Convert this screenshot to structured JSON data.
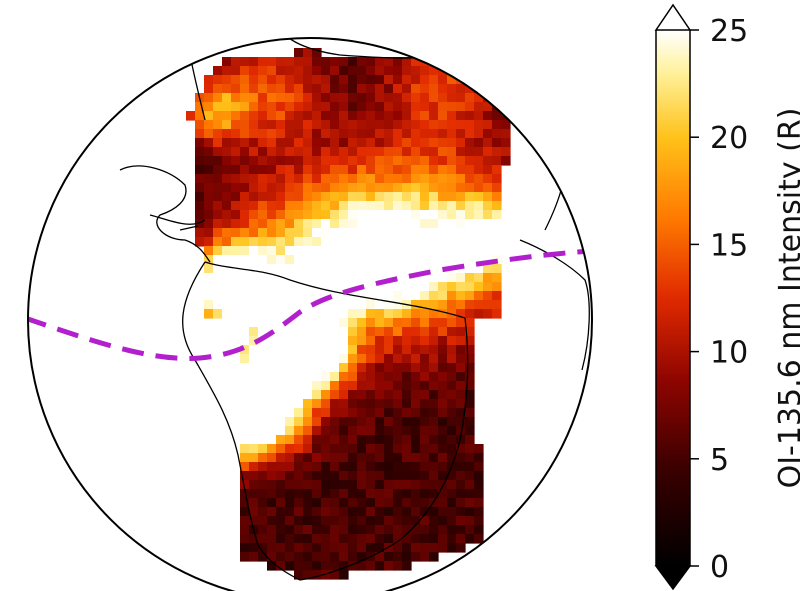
{
  "chart_data": {
    "type": "heatmap",
    "projection": "orthographic",
    "colormap": "afmhot",
    "colorbar": {
      "label": "OI-135.6 nm Intensity (R)",
      "range": [
        0,
        25
      ],
      "ticks": [
        0,
        5,
        10,
        15,
        20,
        25
      ],
      "tick_labels": [
        "0",
        "5",
        "10",
        "15",
        "20",
        "25"
      ],
      "extend": "both",
      "placement": "right"
    },
    "features": {
      "coastlines": true,
      "magnetic_equator": {
        "color": "#b21fcc",
        "style": "dashed"
      }
    },
    "colors": {
      "map_background": "#ffffff",
      "coastline": "#000000",
      "equator_line": "#b21fcc"
    }
  }
}
